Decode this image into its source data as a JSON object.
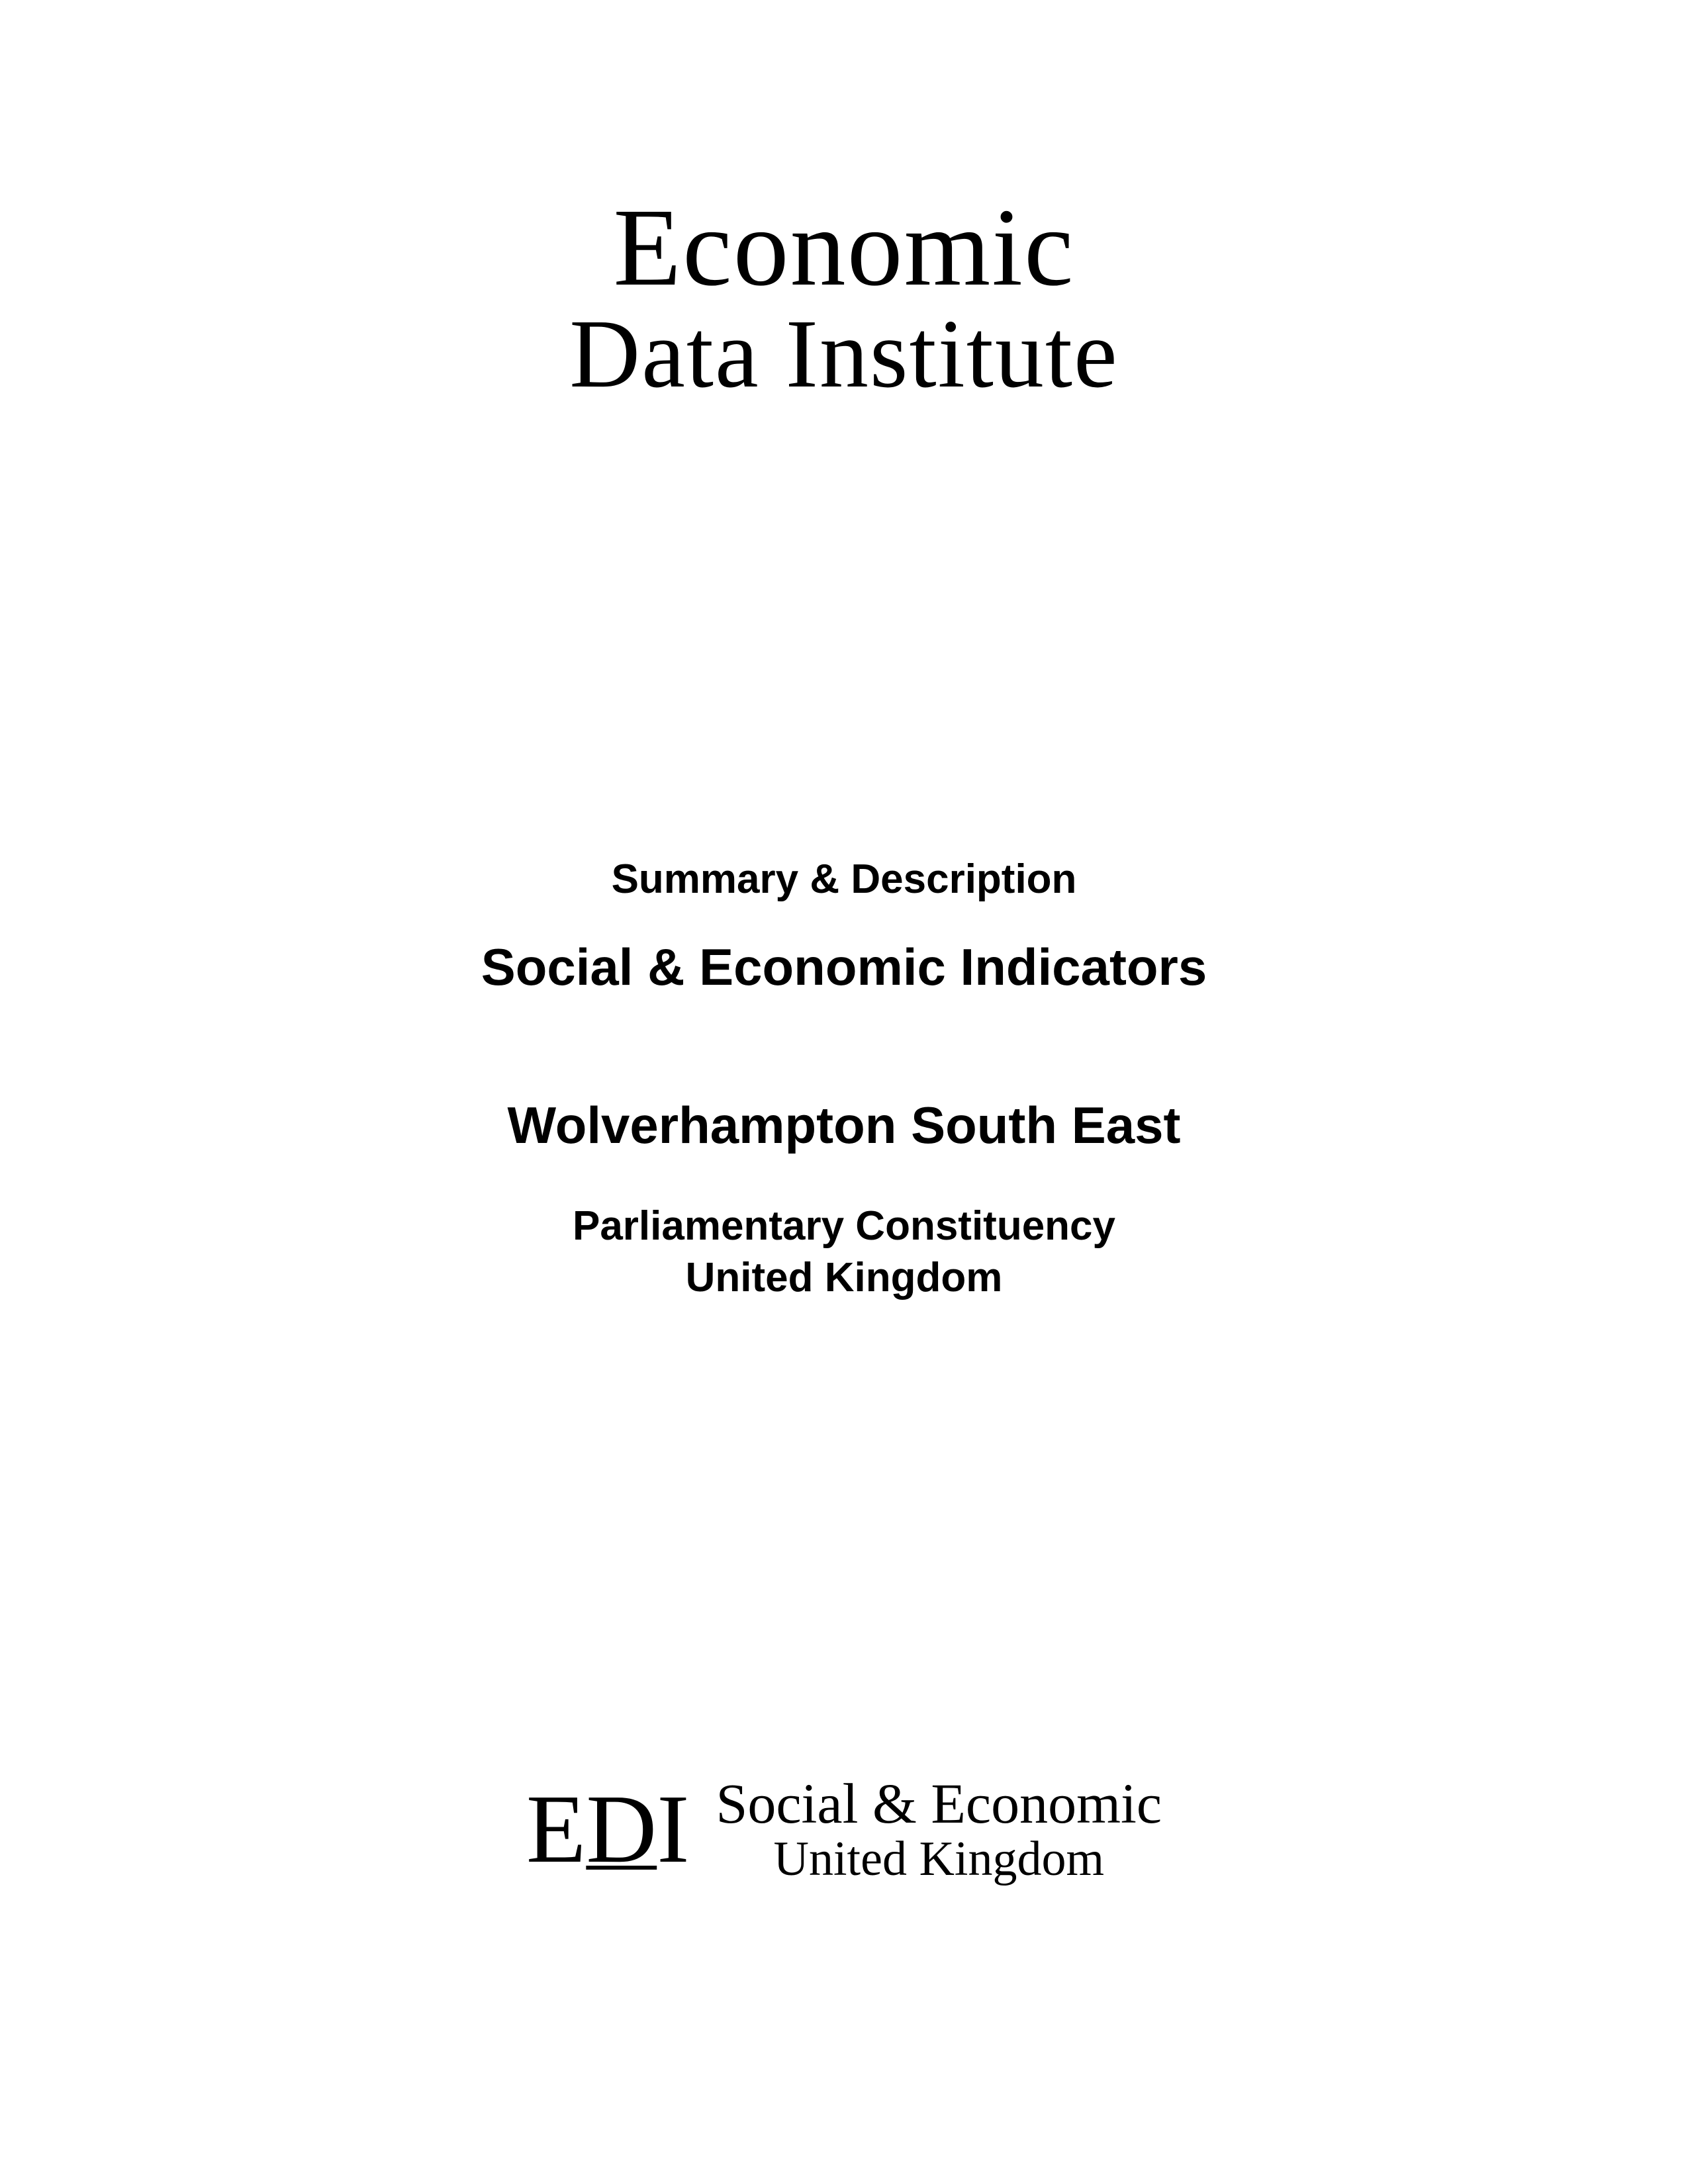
{
  "logo_top": {
    "line1": "Economic",
    "line2": "Data Institute"
  },
  "middle": {
    "summary": "Summary & Description",
    "indicators": "Social & Economic Indicators",
    "constituency_name": "Wolverhampton South East",
    "constituency_type_line1": "Parliamentary Constituency",
    "constituency_type_line2": "United Kingdom"
  },
  "logo_bottom": {
    "edi_e": "E",
    "edi_d": "D",
    "edi_i": "I",
    "line1": "Social & Economic",
    "line2": "United Kingdom"
  }
}
